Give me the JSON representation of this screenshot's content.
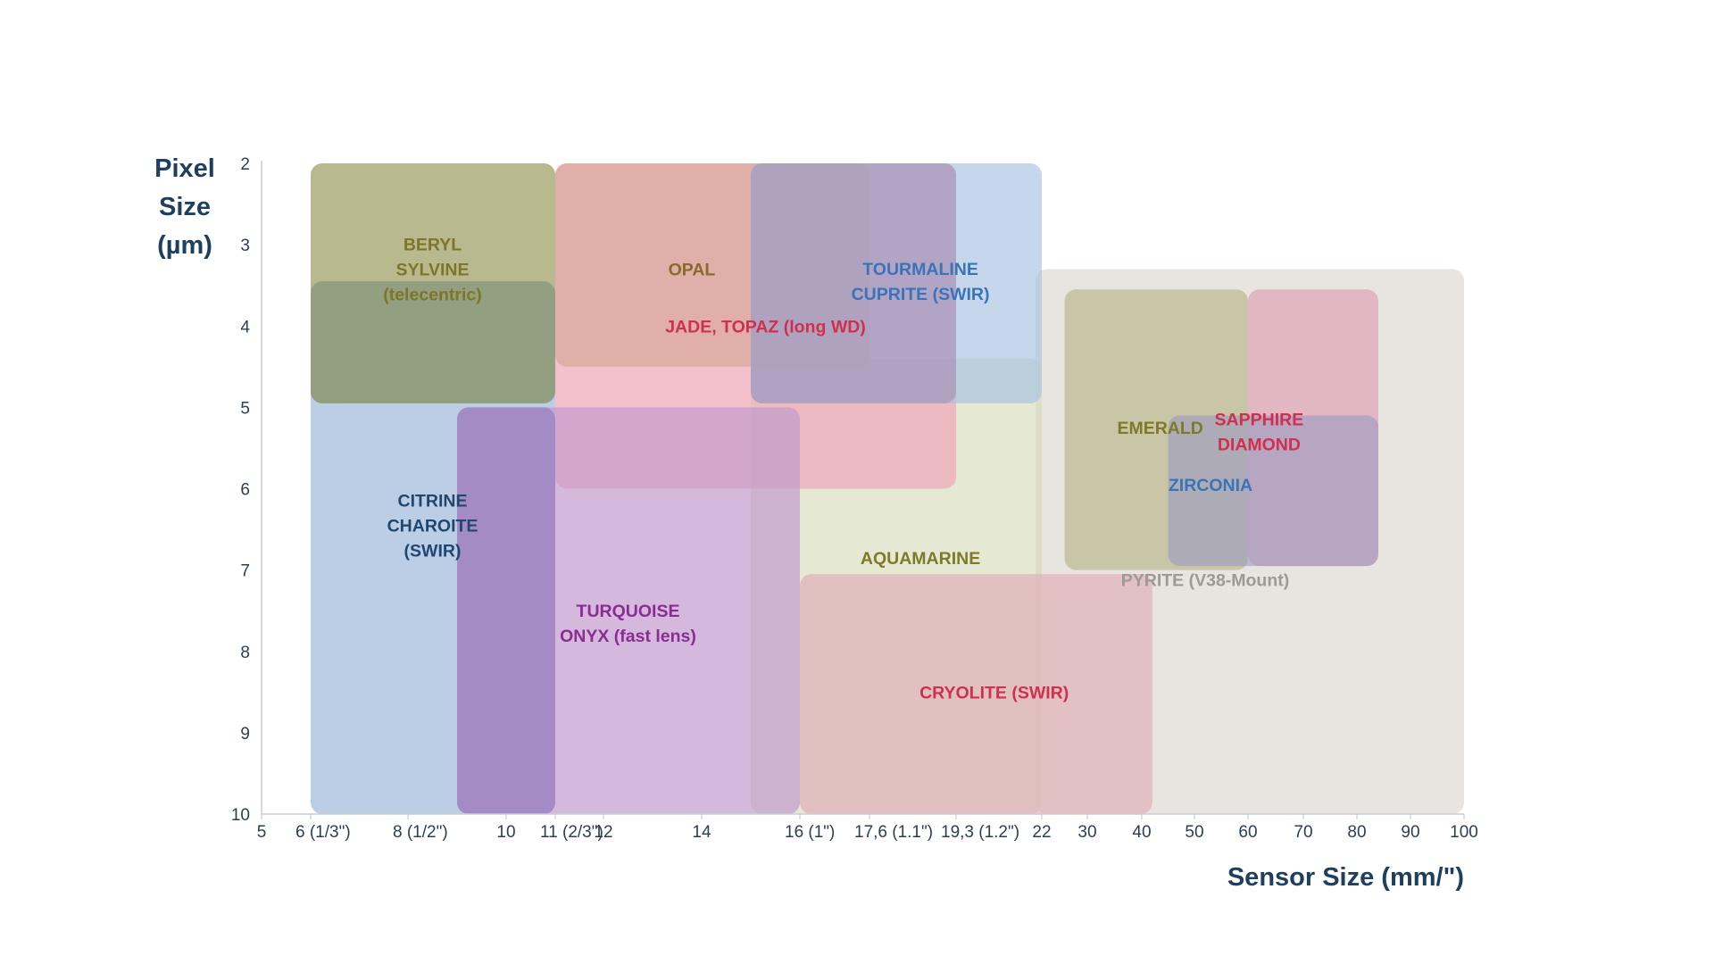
{
  "chart_data": {
    "type": "range-region-map",
    "ylabel": [
      "Pixel",
      "Size",
      "(µm)"
    ],
    "xlabel": "Sensor Size (mm/\")",
    "y_ticks": [
      "2",
      "3",
      "4",
      "5",
      "6",
      "7",
      "8",
      "9",
      "10"
    ],
    "y_range": [
      2,
      10
    ],
    "y_inverted": true,
    "x_axis_note": "categorical/piecewise scale; regions reference tick indices",
    "x_ticks": [
      "5",
      "6 (1/3\")",
      "8 (1/2\")",
      "10",
      "11 (2/3\")",
      "12",
      "14",
      "16 (1\")",
      "17,6 (1.1\")",
      "19,3 (1.2\")",
      "22",
      "30",
      "40",
      "50",
      "60",
      "70",
      "80",
      "90",
      "100"
    ],
    "grid": false,
    "regions": [
      {
        "name": "PYRITE",
        "x": [
          21.8,
          100
        ],
        "y": [
          3.3,
          10
        ],
        "color": "#d9d4cc",
        "opacity": 0.6
      },
      {
        "name": "AQUAMARINE",
        "x": [
          15,
          22
        ],
        "y": [
          4.4,
          10
        ],
        "color": "#d3d8b6",
        "opacity": 0.6
      },
      {
        "name": "CITRINE",
        "x": [
          6,
          11
        ],
        "y": [
          2,
          10
        ],
        "color": "#a5bedd",
        "opacity": 0.75
      },
      {
        "name": "BERYL",
        "x": [
          6,
          11
        ],
        "y": [
          2,
          4.95
        ],
        "color": "#b8b06a",
        "opacity": 0.7
      },
      {
        "name": "SYLVINE",
        "x": [
          6,
          11
        ],
        "y": [
          3.45,
          4.95
        ],
        "color": "#7d9078",
        "opacity": 0.65
      },
      {
        "name": "JADE_TOPAZ",
        "x": [
          11,
          19.3
        ],
        "y": [
          2,
          6
        ],
        "color": "#eea8b9",
        "opacity": 0.72
      },
      {
        "name": "OPAL",
        "x": [
          11,
          17.6
        ],
        "y": [
          2,
          4.5
        ],
        "color": "#d3a393",
        "opacity": 0.6
      },
      {
        "name": "CUPRITE",
        "x": [
          15,
          22
        ],
        "y": [
          2,
          4.95
        ],
        "color": "#a8c1e0",
        "opacity": 0.65
      },
      {
        "name": "TOURMALINE",
        "x": [
          15,
          19.3
        ],
        "y": [
          2,
          4.95
        ],
        "color": "#a791b6",
        "opacity": 0.6
      },
      {
        "name": "TURQUOISE",
        "x": [
          9,
          16
        ],
        "y": [
          5,
          10
        ],
        "color": "#c39bcd",
        "opacity": 0.7
      },
      {
        "name": "ONYX",
        "x": [
          9,
          11
        ],
        "y": [
          5,
          10
        ],
        "color": "#8e71b8",
        "opacity": 0.55
      },
      {
        "name": "CRYOLITE",
        "x": [
          16,
          42
        ],
        "y": [
          7.05,
          10
        ],
        "color": "#dfb1b6",
        "opacity": 0.7
      },
      {
        "name": "EMERALD",
        "x": [
          26,
          60
        ],
        "y": [
          3.55,
          7
        ],
        "color": "#b9b689",
        "opacity": 0.65
      },
      {
        "name": "SAPPHIRE_DIAMOND",
        "x": [
          60,
          84
        ],
        "y": [
          3.55,
          6.95
        ],
        "color": "#e0a3b5",
        "opacity": 0.7
      },
      {
        "name": "ZIRCONIA",
        "x": [
          45,
          84
        ],
        "y": [
          5.1,
          6.95
        ],
        "color": "#9b9bc0",
        "opacity": 0.6
      }
    ],
    "labels": [
      {
        "lines": [
          "BERYL",
          "SYLVINE",
          "(telecentric)"
        ],
        "x": 8.5,
        "y": 3.3,
        "color": "#7d7628"
      },
      {
        "lines": [
          "OPAL"
        ],
        "x": 13.8,
        "y": 3.3,
        "color": "#8a6b2a"
      },
      {
        "lines": [
          "TOURMALINE",
          "CUPRITE (SWIR)"
        ],
        "x": 18.6,
        "y": 3.45,
        "color": "#3a74b8"
      },
      {
        "lines": [
          "JADE, TOPAZ (long WD)"
        ],
        "x": 15.3,
        "y": 4,
        "color": "#d0304e"
      },
      {
        "lines": [
          "CITRINE",
          "CHAROITE",
          "(SWIR)"
        ],
        "x": 8.5,
        "y": 6.45,
        "color": "#1f4770"
      },
      {
        "lines": [
          "TURQUOISE",
          "ONYX (fast lens)"
        ],
        "x": 12.5,
        "y": 7.65,
        "color": "#8a2c93"
      },
      {
        "lines": [
          "AQUAMARINE"
        ],
        "x": 18.6,
        "y": 6.85,
        "color": "#7d7a28"
      },
      {
        "lines": [
          "CRYOLITE (SWIR)"
        ],
        "x": 20.5,
        "y": 8.5,
        "color": "#d0304e"
      },
      {
        "lines": [
          "EMERALD"
        ],
        "x": 43.5,
        "y": 5.25,
        "color": "#7d7a28"
      },
      {
        "lines": [
          "SAPPHIRE",
          "DIAMOND"
        ],
        "x": 62,
        "y": 5.3,
        "color": "#d0304e"
      },
      {
        "lines": [
          "ZIRCONIA"
        ],
        "x": 53,
        "y": 5.95,
        "color": "#3a74b8"
      },
      {
        "lines": [
          "PYRITE (V38-Mount)"
        ],
        "x": 52,
        "y": 7.12,
        "color": "#9e9a93"
      }
    ]
  }
}
